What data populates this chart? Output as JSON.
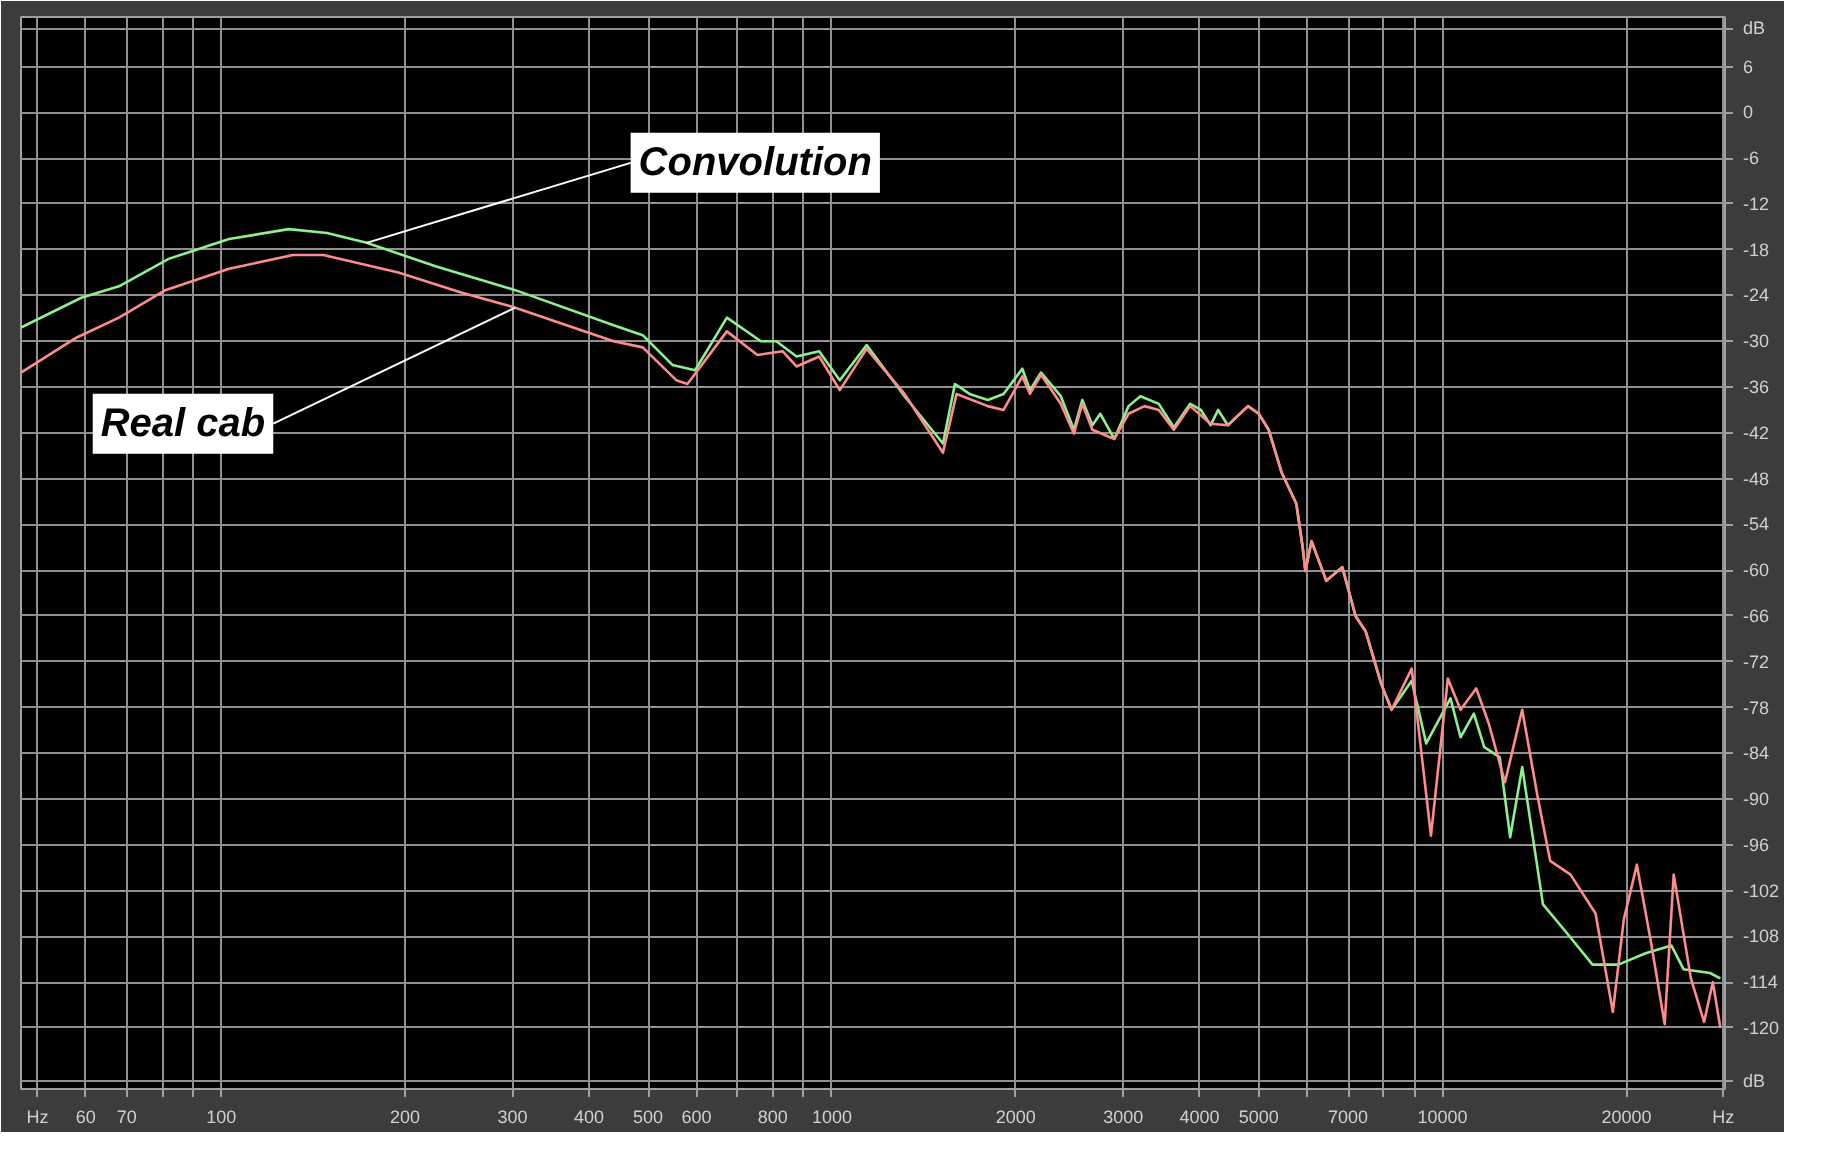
{
  "chart_data": {
    "type": "line",
    "log": "x",
    "grid": true,
    "marker": "none",
    "line_style": "solid",
    "xlim": [
      47,
      29000
    ],
    "ylim": [
      -128,
      12.5
    ],
    "xticks": [
      {
        "value": 50,
        "label": "Hz"
      },
      60,
      70,
      {
        "value": 80,
        "label": null
      },
      {
        "value": 90,
        "label": null
      },
      100,
      200,
      300,
      400,
      500,
      600,
      {
        "value": 700,
        "label": null
      },
      800,
      {
        "value": 900,
        "label": null
      },
      1000,
      2000,
      3000,
      4000,
      5000,
      {
        "value": 6000,
        "label": null
      },
      7000,
      {
        "value": 8000,
        "label": null
      },
      {
        "value": 9000,
        "label": null
      },
      10000,
      20000,
      {
        "value": 28800,
        "label": "Hz"
      }
    ],
    "yticks": [
      {
        "value": 11,
        "label": "dB"
      },
      6,
      0,
      -6,
      -12,
      -18,
      -24,
      -30,
      -36,
      -42,
      -48,
      -54,
      -60,
      -66,
      -72,
      -78,
      -84,
      -90,
      -96,
      -102,
      -108,
      -114,
      -120,
      {
        "value": -127,
        "label": "dB"
      }
    ],
    "series": [
      {
        "color": "#8cf08c",
        "x": [
          47,
          59,
          68,
          82,
          103,
          129,
          149,
          173,
          225,
          303,
          439,
          490,
          548,
          597,
          673,
          765,
          811,
          875,
          953,
          1030,
          1140,
          1315,
          1520,
          1590,
          1680,
          1800,
          1910,
          2050,
          2110,
          2200,
          2370,
          2490,
          2570,
          2670,
          2750,
          2900,
          3060,
          3200,
          3430,
          3630,
          3860,
          4020,
          4170,
          4290,
          4450,
          4800,
          5000,
          5190,
          5450,
          5760,
          5900,
          5960,
          6100,
          6450,
          6850,
          7200,
          7480,
          7940,
          8250,
          8900,
          9400,
          10300,
          10700,
          11250,
          11700,
          12400,
          12900,
          13500,
          14600,
          15800,
          17600,
          19400,
          21500,
          23700,
          24800,
          27400,
          28500
        ],
        "values": [
          -28.2,
          -24.3,
          -22.8,
          -19.2,
          -16.6,
          -15.3,
          -15.8,
          -17.1,
          -20.2,
          -23.3,
          -27.9,
          -29.2,
          -33.1,
          -33.8,
          -26.9,
          -30,
          -30,
          -32,
          -31.3,
          -35.1,
          -30.5,
          -37.2,
          -43.4,
          -35.6,
          -36.9,
          -37.7,
          -36.9,
          -33.6,
          -36.4,
          -34.1,
          -37.2,
          -41.6,
          -37.7,
          -41,
          -39.5,
          -42.8,
          -38.5,
          -37.2,
          -38.2,
          -41.3,
          -38.2,
          -39,
          -41,
          -39,
          -41,
          -38.5,
          -39.5,
          -41.6,
          -47.2,
          -51.3,
          -57,
          -60.1,
          -56.2,
          -61.4,
          -59.6,
          -66,
          -68,
          -75,
          -78.3,
          -74.5,
          -82.7,
          -76.8,
          -81.9,
          -78.8,
          -83.2,
          -84.5,
          -95,
          -85.8,
          -103.8,
          -107.1,
          -111.7,
          -111.7,
          -110.2,
          -109.2,
          -112.3,
          -112.8,
          -113.5
        ]
      },
      {
        "color": "#ff8c8c",
        "x": [
          47,
          58,
          68,
          81,
          103,
          131,
          147,
          195,
          247,
          303,
          439,
          490,
          556,
          580,
          673,
          755,
          830,
          875,
          953,
          1030,
          1140,
          1315,
          1520,
          1600,
          1800,
          1910,
          2050,
          2110,
          2200,
          2370,
          2490,
          2570,
          2670,
          2900,
          3060,
          3250,
          3430,
          3630,
          3860,
          4170,
          4450,
          4800,
          5000,
          5190,
          5450,
          5760,
          5900,
          5960,
          6100,
          6450,
          6850,
          7200,
          7480,
          7940,
          8250,
          8900,
          9570,
          10200,
          10700,
          11350,
          11900,
          12650,
          13500,
          14300,
          15000,
          16200,
          17800,
          19000,
          19800,
          20800,
          21900,
          23100,
          23900,
          25500,
          26800,
          27700,
          28500
        ],
        "values": [
          -34.1,
          -29.5,
          -26.9,
          -23.3,
          -20.5,
          -18.7,
          -18.7,
          -21,
          -23.6,
          -25.6,
          -30,
          -30.8,
          -35.1,
          -35.6,
          -28.7,
          -31.8,
          -31.3,
          -33.3,
          -32,
          -36.4,
          -31,
          -36.9,
          -44.6,
          -36.9,
          -38.5,
          -39,
          -34.6,
          -36.9,
          -34.4,
          -38.2,
          -42.1,
          -38.2,
          -41.6,
          -42.8,
          -39.5,
          -38.5,
          -39,
          -41.6,
          -38.5,
          -40.8,
          -41,
          -38.5,
          -39.5,
          -41.6,
          -47.2,
          -51.3,
          -57,
          -60.1,
          -56.2,
          -61.4,
          -59.6,
          -66,
          -68,
          -75,
          -78.3,
          -72.9,
          -94.8,
          -74.2,
          -78.3,
          -75.5,
          -80.1,
          -87.8,
          -78.3,
          -89.6,
          -98.1,
          -99.9,
          -105,
          -117.9,
          -105.8,
          -98.6,
          -108.4,
          -119.5,
          -99.9,
          -113.5,
          -119.2,
          -114,
          -120
        ]
      }
    ],
    "annotations": [
      {
        "text": "Convolution",
        "x": 173,
        "y": -17.1
      },
      {
        "text": "Real cab",
        "x": 303,
        "y": -25.6
      }
    ]
  }
}
